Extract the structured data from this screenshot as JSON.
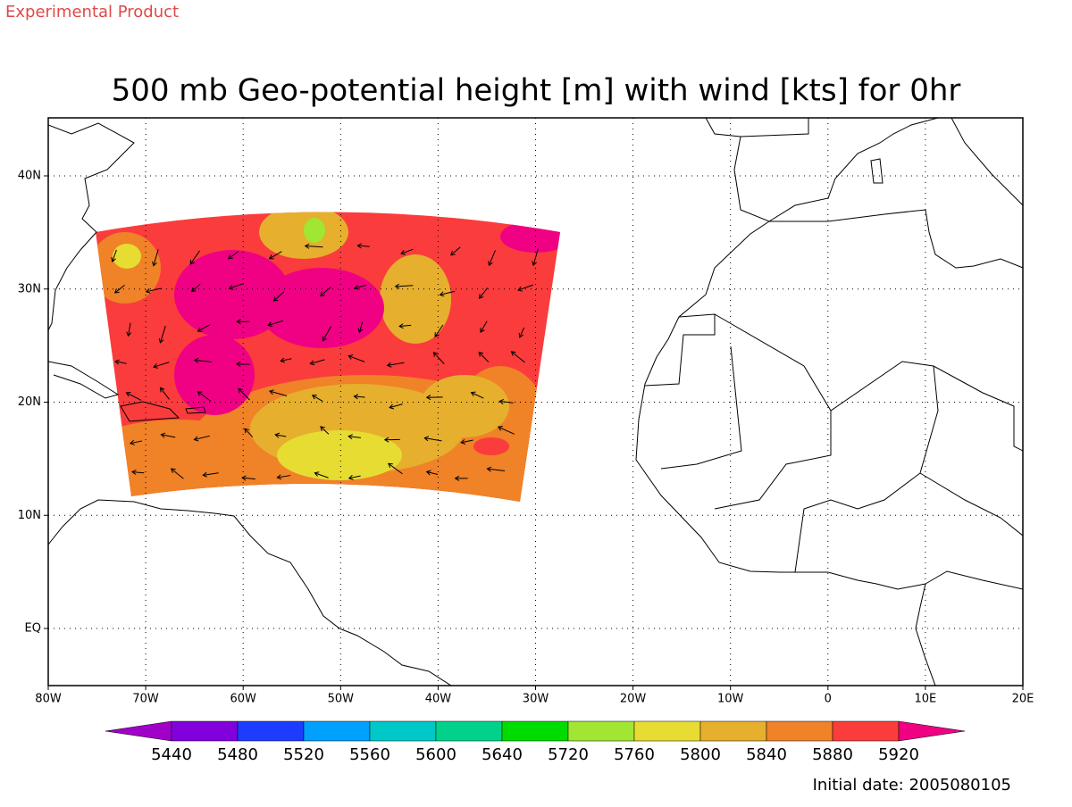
{
  "header": "Experimental Product",
  "title": "500 mb Geo-potential height [m] with wind [kts] for 0hr",
  "map": {
    "lon_labels": [
      "80W",
      "70W",
      "60W",
      "50W",
      "40W",
      "30W",
      "20W",
      "10W",
      "0",
      "10E",
      "20E"
    ],
    "lat_labels": [
      "40N",
      "30N",
      "20N",
      "10N",
      "EQ"
    ]
  },
  "colorbar": {
    "levels": [
      5440,
      5480,
      5520,
      5560,
      5600,
      5640,
      5720,
      5760,
      5800,
      5840,
      5880,
      5920
    ],
    "colors": [
      "#a000c8",
      "#8200dc",
      "#1e3cff",
      "#00a0ff",
      "#00c8c8",
      "#00d28c",
      "#00dc00",
      "#a0e632",
      "#e6dc32",
      "#e6af2d",
      "#f08228",
      "#fa3c3c",
      "#f00082"
    ]
  },
  "footer": "Initial date: 2005080105"
}
